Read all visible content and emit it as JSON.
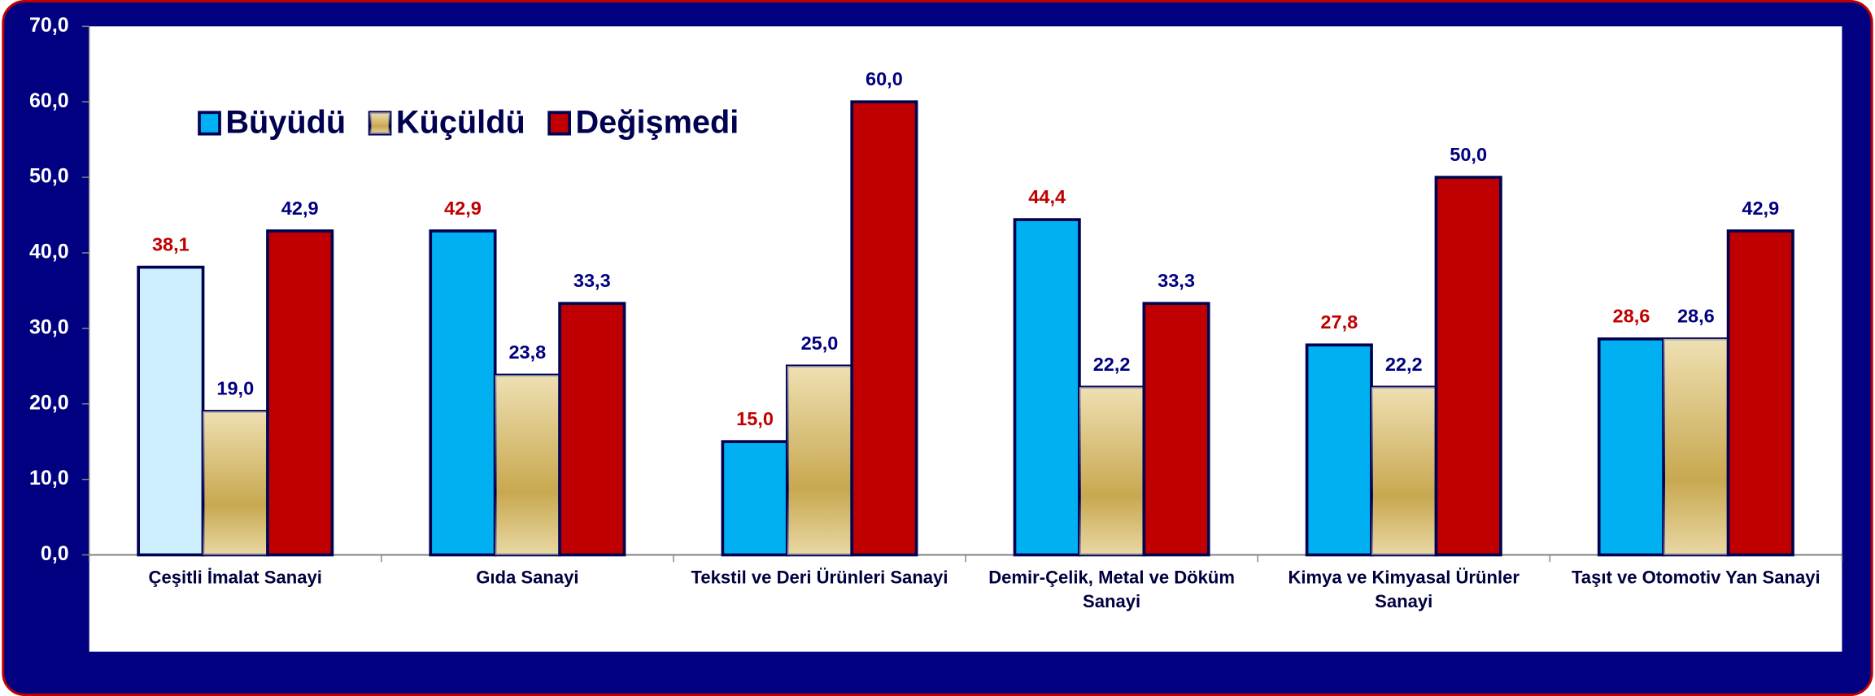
{
  "chart_data": {
    "type": "bar",
    "categories": [
      "Çeşitli İmalat Sanayi",
      "Gıda Sanayi",
      "Tekstil ve Deri Ürünleri Sanayi",
      "Demir-Çelik, Metal ve Döküm Sanayi",
      "Kimya ve Kimyasal Ürünler Sanayi",
      "Taşıt ve Otomotiv Yan Sanayi"
    ],
    "series": [
      {
        "name": "Büyüdü",
        "color": "#00b0f0",
        "point_colors": [
          "#cceeff",
          "#00b0f0",
          "#00b0f0",
          "#00b0f0",
          "#00b0f0",
          "#00b0f0"
        ],
        "label_color": "#c00000",
        "values": [
          38.1,
          42.9,
          15.0,
          44.4,
          27.8,
          28.6
        ],
        "value_labels": [
          "38,1",
          "42,9",
          "15,0",
          "44,4",
          "27,8",
          "28,6"
        ]
      },
      {
        "name": "Küçüldü",
        "color": "#c8a850",
        "gradient": true,
        "label_color": "#000080",
        "values": [
          19.0,
          23.8,
          25.0,
          22.2,
          22.2,
          28.6
        ],
        "value_labels": [
          "19,0",
          "23,8",
          "25,0",
          "22,2",
          "22,2",
          "28,6"
        ]
      },
      {
        "name": "Değişmedi",
        "color": "#c00000",
        "label_color": "#000080",
        "values": [
          42.9,
          33.3,
          60.0,
          33.3,
          50.0,
          42.9
        ],
        "value_labels": [
          "42,9",
          "33,3",
          "60,0",
          "33,3",
          "50,0",
          "42,9"
        ]
      }
    ],
    "ylim": [
      0,
      70
    ],
    "yticks": [
      {
        "value": 0,
        "label": "0,0"
      },
      {
        "value": 10,
        "label": "10,0"
      },
      {
        "value": 20,
        "label": "20,0"
      },
      {
        "value": 30,
        "label": "30,0"
      },
      {
        "value": 40,
        "label": "40,0"
      },
      {
        "value": 50,
        "label": "50,0"
      },
      {
        "value": 60,
        "label": "60,0"
      },
      {
        "value": 70,
        "label": "70,0"
      }
    ],
    "legend": "top-left"
  }
}
